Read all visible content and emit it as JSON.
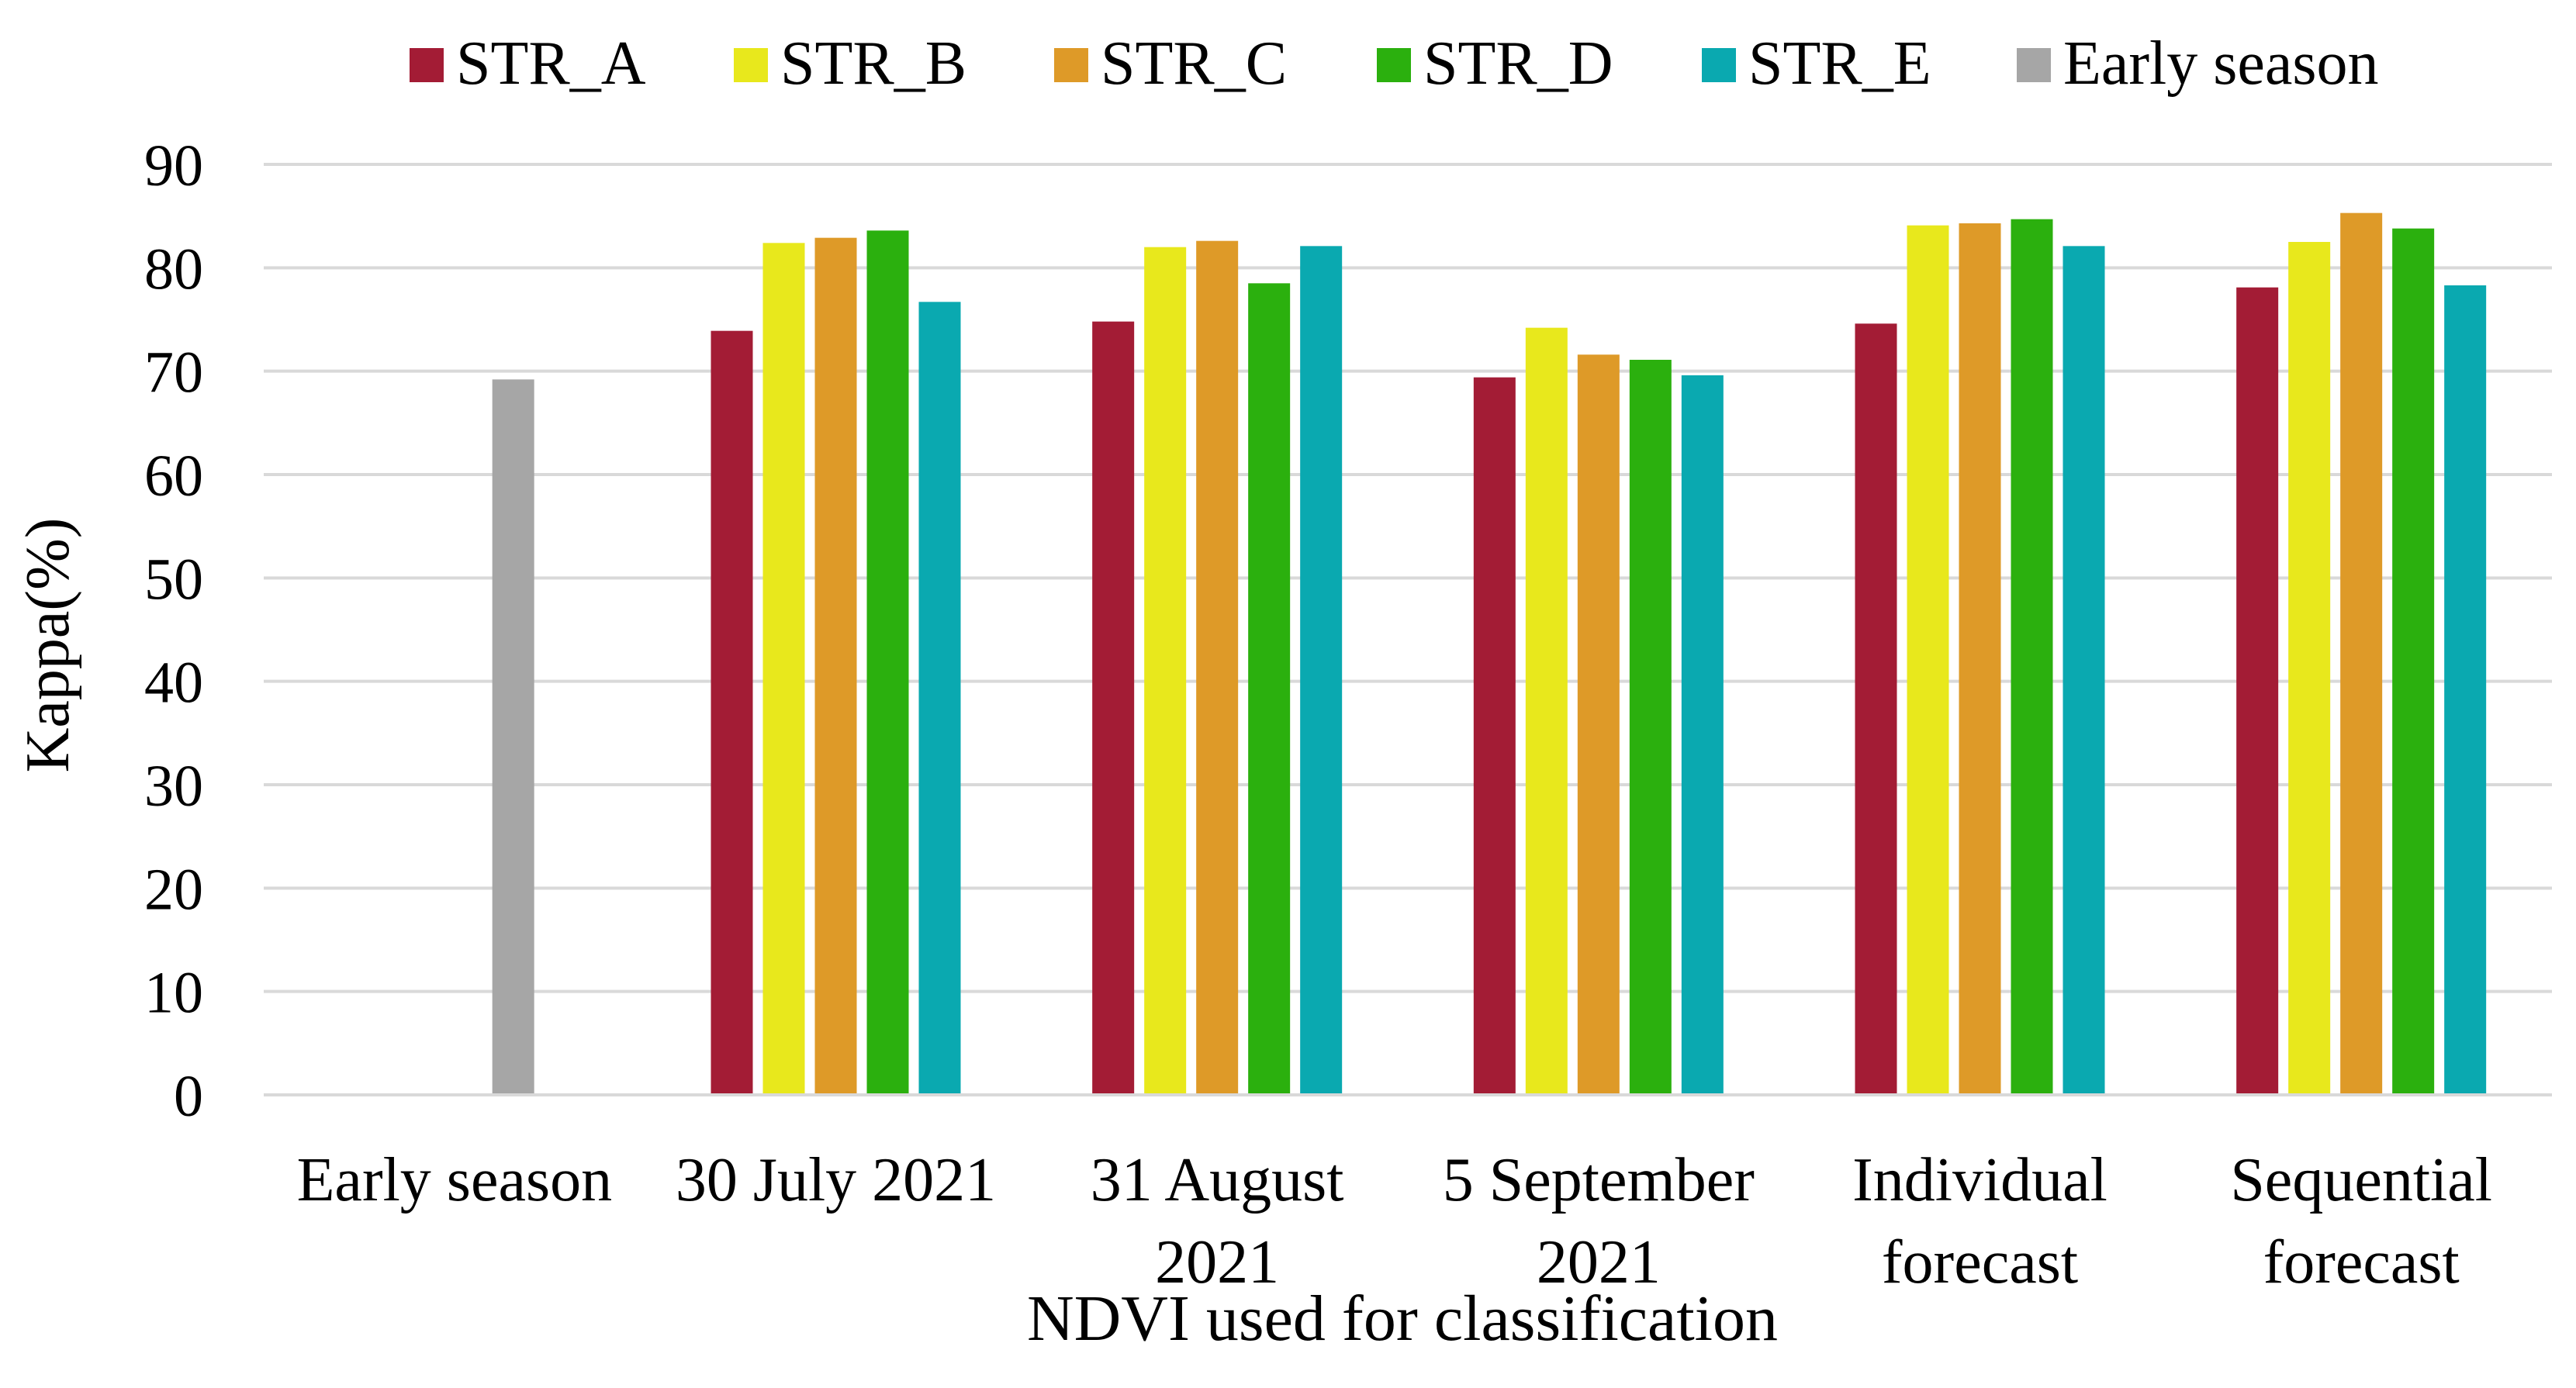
{
  "chart_data": {
    "type": "bar",
    "title": "",
    "xlabel": "NDVI used for classification",
    "ylabel": "Kappa(%)",
    "ylim": [
      0,
      90
    ],
    "yticks": [
      "0",
      "10",
      "20",
      "30",
      "40",
      "50",
      "60",
      "70",
      "80",
      "90"
    ],
    "grid": true,
    "legend_position": "top",
    "categories": [
      {
        "lines": [
          "Early season"
        ]
      },
      {
        "lines": [
          "30 July 2021"
        ]
      },
      {
        "lines": [
          "31 August",
          "2021"
        ]
      },
      {
        "lines": [
          "5 September",
          "2021"
        ]
      },
      {
        "lines": [
          "Individual",
          "forecast"
        ]
      },
      {
        "lines": [
          "Sequential",
          "forecast"
        ]
      }
    ],
    "series": [
      {
        "name": "STR_A",
        "color": "#a31c35",
        "values": [
          null,
          73.9,
          74.8,
          69.4,
          74.6,
          78.1
        ]
      },
      {
        "name": "STR_B",
        "color": "#e8e81c",
        "values": [
          null,
          82.4,
          82.0,
          74.2,
          84.1,
          82.5
        ]
      },
      {
        "name": "STR_C",
        "color": "#de9a28",
        "values": [
          null,
          82.9,
          82.6,
          71.6,
          84.3,
          85.3
        ]
      },
      {
        "name": "STR_D",
        "color": "#2bb00e",
        "values": [
          null,
          83.6,
          78.5,
          71.1,
          84.7,
          83.8
        ]
      },
      {
        "name": "STR_E",
        "color": "#0aa9b0",
        "values": [
          null,
          76.7,
          82.1,
          69.6,
          82.1,
          78.3
        ]
      },
      {
        "name": "Early season",
        "color": "#a6a6a6",
        "values": [
          69.2,
          null,
          null,
          null,
          null,
          null
        ]
      }
    ]
  }
}
